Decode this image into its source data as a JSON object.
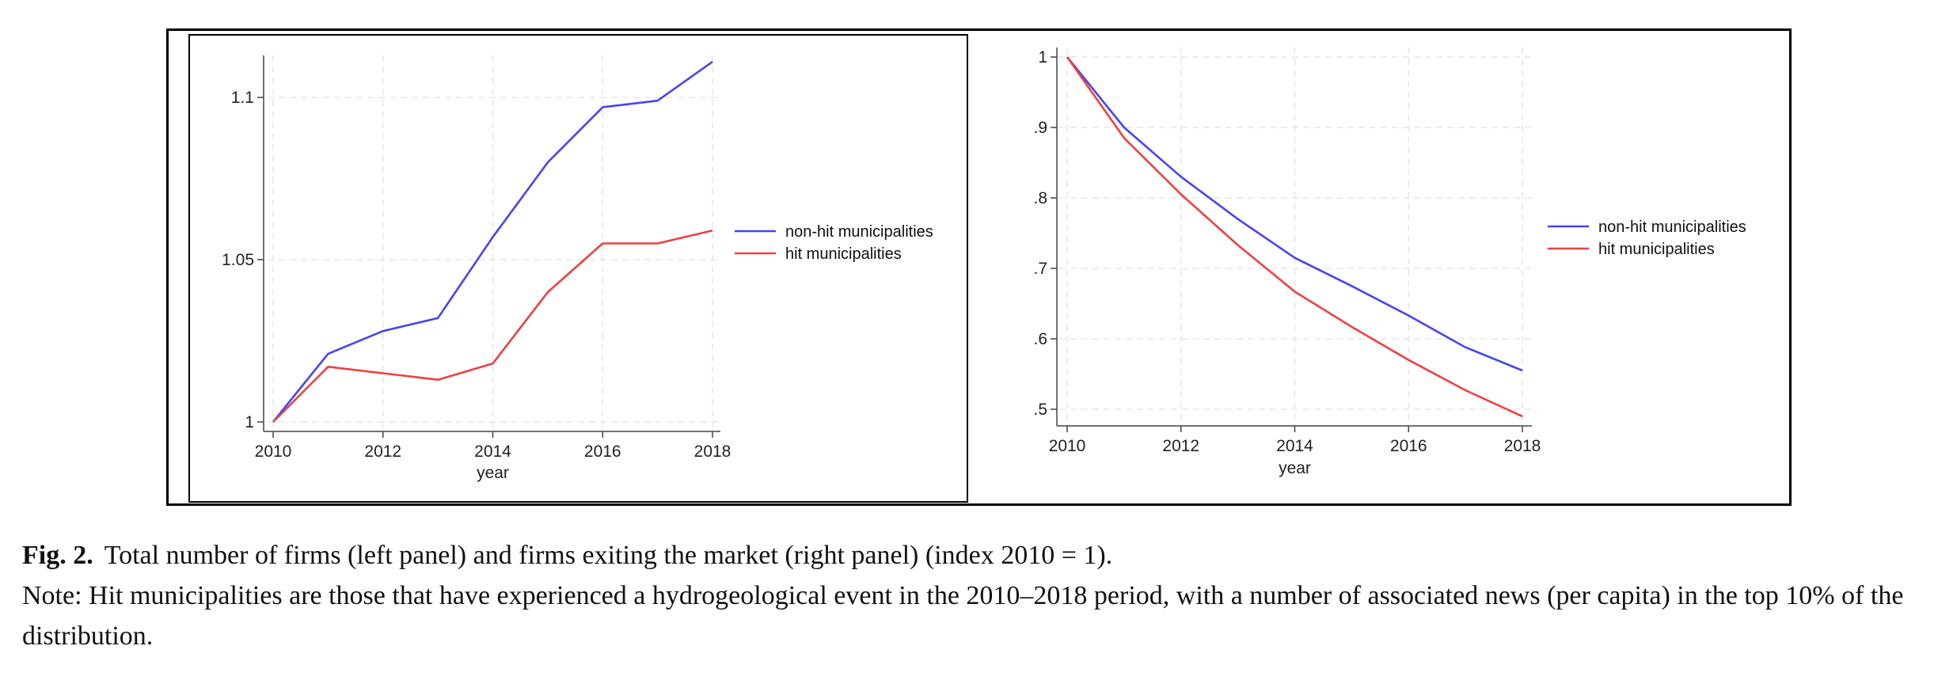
{
  "chart_data": [
    {
      "type": "line",
      "xlabel": "year",
      "ylabel": "",
      "x": [
        2010,
        2011,
        2012,
        2013,
        2014,
        2015,
        2016,
        2017,
        2018
      ],
      "xticks": [
        "2010",
        "2012",
        "2014",
        "2016",
        "2018"
      ],
      "yticks": [
        "1",
        "1.05",
        "1.1"
      ],
      "ylim": [
        1.0,
        1.111
      ],
      "grid": true,
      "legend_position": "right",
      "series": [
        {
          "name": "non-hit municipalities",
          "color": "#4545f5",
          "values": [
            1.0,
            1.021,
            1.028,
            1.032,
            1.057,
            1.08,
            1.097,
            1.099,
            1.111
          ]
        },
        {
          "name": "hit municipalities",
          "color": "#f04040",
          "values": [
            1.0,
            1.017,
            1.015,
            1.013,
            1.018,
            1.04,
            1.055,
            1.055,
            1.059
          ]
        }
      ]
    },
    {
      "type": "line",
      "xlabel": "year",
      "ylabel": "",
      "x": [
        2010,
        2011,
        2012,
        2013,
        2014,
        2015,
        2016,
        2017,
        2018
      ],
      "xticks": [
        "2010",
        "2012",
        "2014",
        "2016",
        "2018"
      ],
      "yticks": [
        ".5",
        ".6",
        ".7",
        ".8",
        ".9",
        "1"
      ],
      "ylim": [
        0.5,
        1.0
      ],
      "grid": true,
      "legend_position": "right",
      "series": [
        {
          "name": "non-hit municipalities",
          "color": "#4545f5",
          "values": [
            1.0,
            0.9,
            0.83,
            0.77,
            0.715,
            0.675,
            0.633,
            0.588,
            0.555
          ]
        },
        {
          "name": "hit municipalities",
          "color": "#f04040",
          "values": [
            1.0,
            0.885,
            0.805,
            0.733,
            0.667,
            0.617,
            0.57,
            0.527,
            0.49
          ]
        }
      ]
    }
  ],
  "caption": {
    "label": "Fig. 2.",
    "title": "Total number of firms (left panel) and firms exiting the market (right panel) (index 2010 = 1).",
    "note": "Note: Hit municipalities are those that have experienced a hydrogeological event in the 2010–2018 period, with a number of associated news (per capita) in the top 10% of the distribution."
  }
}
